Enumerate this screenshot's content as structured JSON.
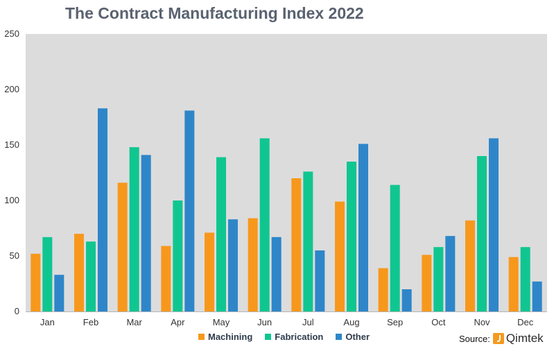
{
  "brand": {
    "name": "Qimtek",
    "logo_color": "#f59a1f"
  },
  "source_label": "Source:",
  "chart_data": {
    "type": "bar",
    "title": "The Contract Manufacturing Index 2022",
    "categories": [
      "Jan",
      "Feb",
      "Mar",
      "Apr",
      "May",
      "Jun",
      "Jul",
      "Aug",
      "Sep",
      "Oct",
      "Nov",
      "Dec"
    ],
    "series": [
      {
        "name": "Machining",
        "color": "#f7981d",
        "values": [
          52,
          70,
          116,
          59,
          71,
          84,
          120,
          99,
          39,
          51,
          82,
          49
        ]
      },
      {
        "name": "Fabrication",
        "color": "#10c690",
        "values": [
          67,
          63,
          148,
          100,
          139,
          156,
          126,
          135,
          114,
          58,
          140,
          58
        ]
      },
      {
        "name": "Other",
        "color": "#2e86c9",
        "values": [
          33,
          183,
          141,
          181,
          83,
          67,
          55,
          151,
          20,
          68,
          156,
          27
        ]
      }
    ],
    "ylim": [
      0,
      250
    ],
    "yticks": [
      0,
      50,
      100,
      150,
      200,
      250
    ],
    "xlabel": "",
    "ylabel": "",
    "grid": false,
    "plot_background": "#dcdcdc",
    "legend_position": "bottom"
  }
}
